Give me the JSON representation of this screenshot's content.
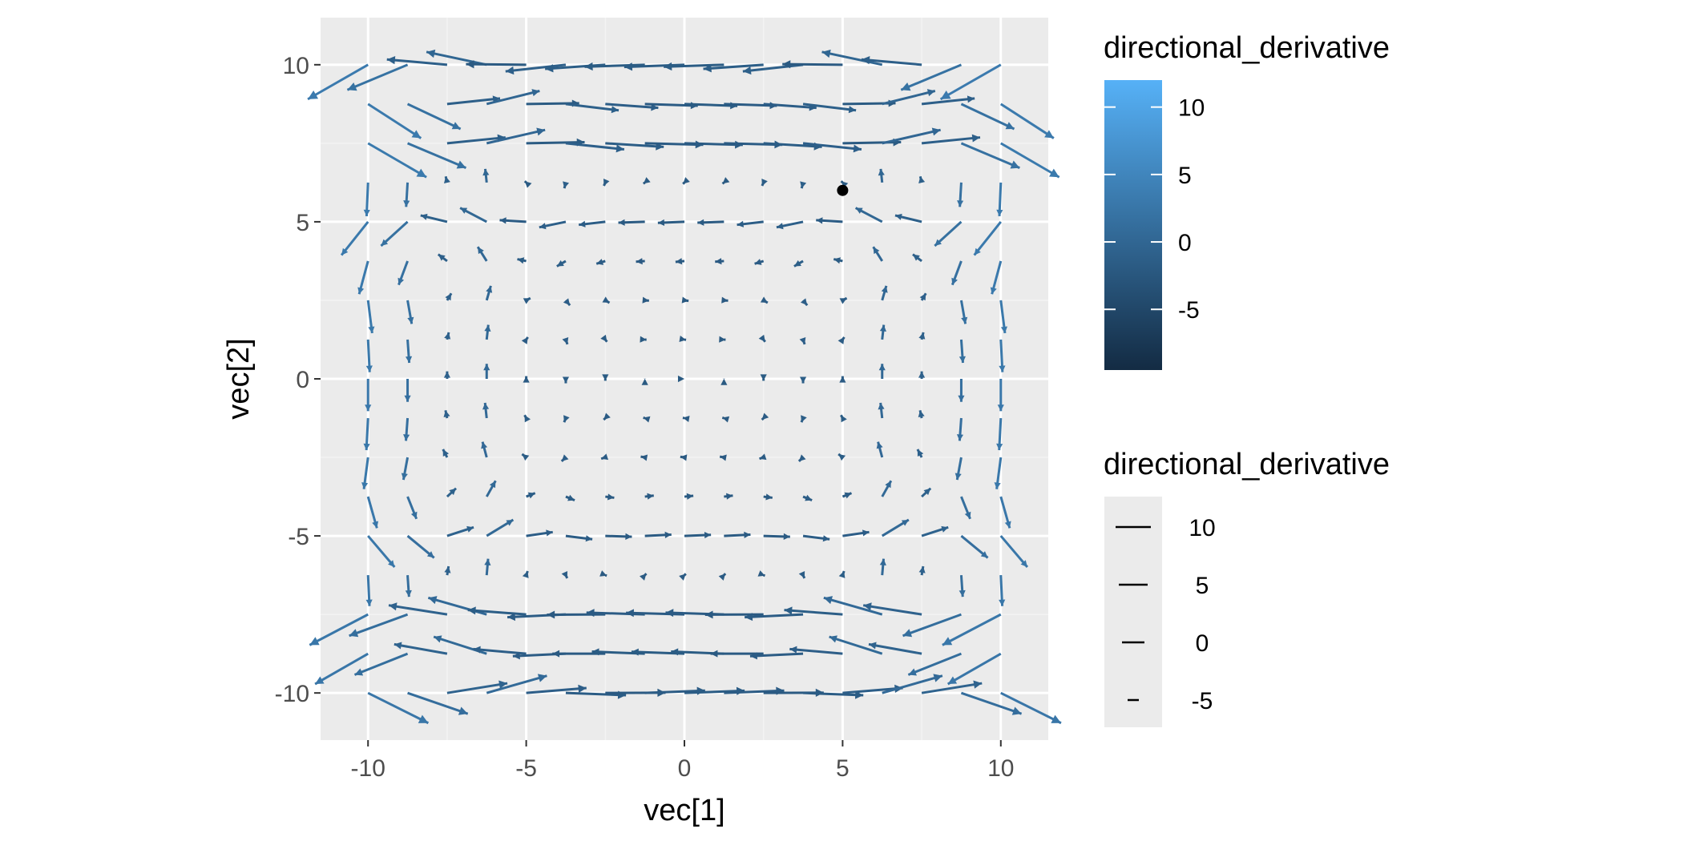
{
  "chart_data": {
    "type": "vector_field",
    "xlabel": "vec[1]",
    "ylabel": "vec[2]",
    "xlim": [
      -11.5,
      11.5
    ],
    "ylim": [
      -11.5,
      11.5
    ],
    "x_ticks": [
      -10,
      -5,
      0,
      5,
      10
    ],
    "y_ticks": [
      -10,
      -5,
      0,
      5,
      10
    ],
    "x_tick_labels": [
      "-10",
      "-5",
      "0",
      "5",
      "10"
    ],
    "y_tick_labels": [
      "-10",
      "-5",
      "0",
      "5",
      "10"
    ],
    "grid": true,
    "field": {
      "grid_min": -10,
      "grid_max": 10,
      "grid_step": 1.25,
      "arrow_scale": 0.035
    },
    "point": {
      "x": 5,
      "y": 6
    },
    "colors": {
      "panel_background": "#ebebeb",
      "grid_major": "#ffffff",
      "grid_minor": "#f3f3f3",
      "low": "#132b43",
      "high": "#56b1f7",
      "point": "#000000"
    },
    "legend_color": {
      "title": "directional_derivative",
      "range": [
        -9.5,
        12
      ],
      "breaks": [
        10,
        5,
        0,
        -5
      ],
      "labels": [
        "10",
        "5",
        "0",
        "-5"
      ]
    },
    "legend_size": {
      "title": "directional_derivative",
      "breaks": [
        10,
        5,
        0,
        -5
      ],
      "labels": [
        "10",
        "5",
        "0",
        "-5"
      ]
    }
  }
}
